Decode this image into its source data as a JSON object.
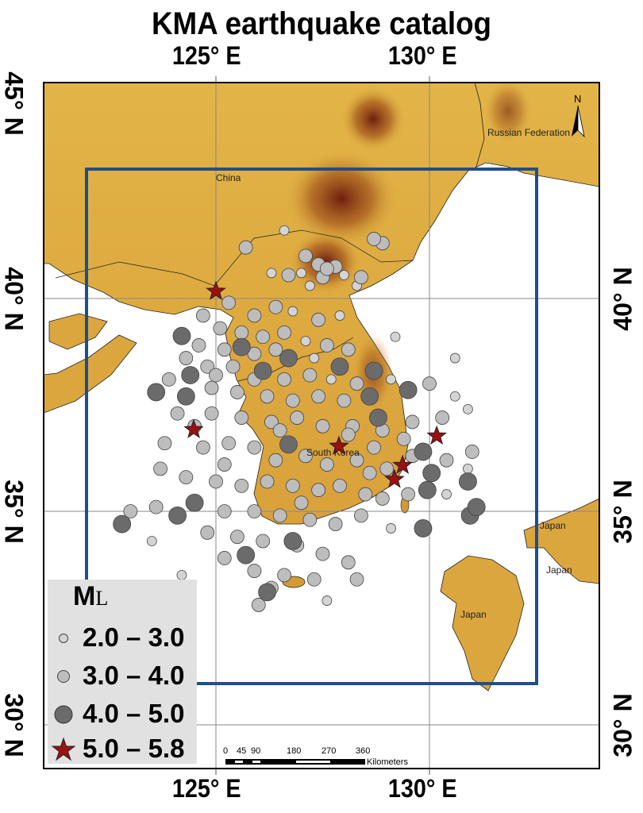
{
  "title": "KMA earthquake catalog",
  "axes": {
    "top_lon_labels": [
      "125° E",
      "130° E"
    ],
    "bottom_lon_labels": [
      "125° E",
      "130° E"
    ],
    "left_lat_labels": [
      "45° N",
      "40° N",
      "35° N",
      "30° N"
    ],
    "right_lat_labels": [
      "40° N",
      "35° N",
      "30° N"
    ],
    "lon_range": [
      121,
      134
    ],
    "lat_range": [
      29,
      45.2
    ]
  },
  "study_area_box": {
    "lon": [
      122.0,
      132.5
    ],
    "lat": [
      31.0,
      43.0
    ],
    "color": "#1f4e8c"
  },
  "place_labels": [
    "China",
    "Russian Federation",
    "South Korea",
    "Japan",
    "Japan",
    "Japan"
  ],
  "north_arrow": "N",
  "scale_bar": {
    "ticks": [
      "0",
      "45",
      "90",
      "180",
      "270",
      "360"
    ],
    "unit": "Kilometers"
  },
  "legend": {
    "title": "M",
    "title_sub": "L",
    "items": [
      {
        "label": "2.0 – 3.0",
        "symbol": "small-light-circle",
        "color": "#d4d4d4"
      },
      {
        "label": "3.0 – 4.0",
        "symbol": "medium-gray-circle",
        "color": "#bdbdbd"
      },
      {
        "label": "4.0 – 5.0",
        "symbol": "large-dark-circle",
        "color": "#6b6b6b"
      },
      {
        "label": "5.0 – 5.8",
        "symbol": "red-star",
        "color": "#9b1010"
      }
    ]
  },
  "earthquakes": [
    [
      125.0,
      40.17,
      5.2
    ],
    [
      124.48,
      36.92,
      5.1
    ],
    [
      127.88,
      36.53,
      5.0
    ],
    [
      130.17,
      36.77,
      5.0
    ],
    [
      129.37,
      36.08,
      5.4
    ],
    [
      129.18,
      35.75,
      5.8
    ],
    [
      124.2,
      39.12,
      4.3
    ],
    [
      124.4,
      38.2,
      4.2
    ],
    [
      123.6,
      37.8,
      4.1
    ],
    [
      124.3,
      37.7,
      4.4
    ],
    [
      122.8,
      34.7,
      4.0
    ],
    [
      124.1,
      34.9,
      4.2
    ],
    [
      124.5,
      35.2,
      4.1
    ],
    [
      125.7,
      33.97,
      4.5
    ],
    [
      126.2,
      33.1,
      4.3
    ],
    [
      126.7,
      36.57,
      4.0
    ],
    [
      128.6,
      37.7,
      4.1
    ],
    [
      128.7,
      38.3,
      4.0
    ],
    [
      129.5,
      37.85,
      4.6
    ],
    [
      128.8,
      37.2,
      4.2
    ],
    [
      129.85,
      36.4,
      4.3
    ],
    [
      130.05,
      35.9,
      4.1
    ],
    [
      129.95,
      35.5,
      4.0
    ],
    [
      129.85,
      34.6,
      4.2
    ],
    [
      130.9,
      35.7,
      4.0
    ],
    [
      131.1,
      35.1,
      4.4
    ],
    [
      130.95,
      34.9,
      4.0
    ],
    [
      125.6,
      38.86,
      4.1
    ],
    [
      126.1,
      38.3,
      4.0
    ],
    [
      126.7,
      38.6,
      4.2
    ],
    [
      127.9,
      38.4,
      4.0
    ],
    [
      126.8,
      34.3,
      4.1
    ],
    [
      126.6,
      41.6,
      2.6
    ],
    [
      127.1,
      41.0,
      3.4
    ],
    [
      127.4,
      40.8,
      3.6
    ],
    [
      127.6,
      40.7,
      3.8
    ],
    [
      127.8,
      40.75,
      3.2
    ],
    [
      127.5,
      40.5,
      3.5
    ],
    [
      128.0,
      40.55,
      2.8
    ],
    [
      128.4,
      40.5,
      3.1
    ],
    [
      127.0,
      40.6,
      2.9
    ],
    [
      126.7,
      40.55,
      3.3
    ],
    [
      126.3,
      40.6,
      2.4
    ],
    [
      128.7,
      41.4,
      3.6
    ],
    [
      128.9,
      41.3,
      3.2
    ],
    [
      125.7,
      41.2,
      3.0
    ],
    [
      128.3,
      40.3,
      2.5
    ],
    [
      127.2,
      40.3,
      2.7
    ],
    [
      126.4,
      39.8,
      3.2
    ],
    [
      125.3,
      39.9,
      3.5
    ],
    [
      125.9,
      39.6,
      3.4
    ],
    [
      126.8,
      39.7,
      2.6
    ],
    [
      127.4,
      39.5,
      3.1
    ],
    [
      124.7,
      39.6,
      3.3
    ],
    [
      125.1,
      39.3,
      3.7
    ],
    [
      125.6,
      39.2,
      3.6
    ],
    [
      126.1,
      39.1,
      3.2
    ],
    [
      126.6,
      39.2,
      3.5
    ],
    [
      127.1,
      39.0,
      2.8
    ],
    [
      127.6,
      38.9,
      3.0
    ],
    [
      124.6,
      38.9,
      3.4
    ],
    [
      125.2,
      38.8,
      3.8
    ],
    [
      125.9,
      38.7,
      3.5
    ],
    [
      126.4,
      38.8,
      3.3
    ],
    [
      127.3,
      38.6,
      2.9
    ],
    [
      128.1,
      38.8,
      3.2
    ],
    [
      124.3,
      38.6,
      3.4
    ],
    [
      124.8,
      38.4,
      3.6
    ],
    [
      125.4,
      38.4,
      3.7
    ],
    [
      125.9,
      38.1,
      3.3
    ],
    [
      126.6,
      38.1,
      3.5
    ],
    [
      127.2,
      38.2,
      3.2
    ],
    [
      127.7,
      38.1,
      2.9
    ],
    [
      128.3,
      38.0,
      3.1
    ],
    [
      123.9,
      38.1,
      3.5
    ],
    [
      124.9,
      37.9,
      3.4
    ],
    [
      125.5,
      37.8,
      3.6
    ],
    [
      126.2,
      37.7,
      3.8
    ],
    [
      126.8,
      37.6,
      3.2
    ],
    [
      127.4,
      37.7,
      3.4
    ],
    [
      128.0,
      37.6,
      3.0
    ],
    [
      124.1,
      37.3,
      3.3
    ],
    [
      124.9,
      37.3,
      3.6
    ],
    [
      125.6,
      37.2,
      3.5
    ],
    [
      126.3,
      37.1,
      3.2
    ],
    [
      126.9,
      37.2,
      3.4
    ],
    [
      127.5,
      37.0,
      3.7
    ],
    [
      128.2,
      37.0,
      3.3
    ],
    [
      128.9,
      36.9,
      3.1
    ],
    [
      129.6,
      37.1,
      3.5
    ],
    [
      130.3,
      37.2,
      3.0
    ],
    [
      130.6,
      37.7,
      2.6
    ],
    [
      130.0,
      38.0,
      3.2
    ],
    [
      129.1,
      38.1,
      2.8
    ],
    [
      130.9,
      37.4,
      2.5
    ],
    [
      123.8,
      36.6,
      3.6
    ],
    [
      124.7,
      36.5,
      3.4
    ],
    [
      125.3,
      36.6,
      3.3
    ],
    [
      125.9,
      36.5,
      3.7
    ],
    [
      126.4,
      36.2,
      3.5
    ],
    [
      127.1,
      36.3,
      3.2
    ],
    [
      127.6,
      36.1,
      3.6
    ],
    [
      128.3,
      36.2,
      3.4
    ],
    [
      128.7,
      36.5,
      3.3
    ],
    [
      129.0,
      36.0,
      3.8
    ],
    [
      129.6,
      36.3,
      3.5
    ],
    [
      130.4,
      36.2,
      3.2
    ],
    [
      130.9,
      36.0,
      2.7
    ],
    [
      123.7,
      36.0,
      3.4
    ],
    [
      124.3,
      35.8,
      3.2
    ],
    [
      125.0,
      35.7,
      3.5
    ],
    [
      125.6,
      35.6,
      3.6
    ],
    [
      126.2,
      35.7,
      3.4
    ],
    [
      126.8,
      35.6,
      3.2
    ],
    [
      127.4,
      35.5,
      3.7
    ],
    [
      127.9,
      35.6,
      3.3
    ],
    [
      128.5,
      35.4,
      3.5
    ],
    [
      128.9,
      35.3,
      3.1
    ],
    [
      129.5,
      35.4,
      3.4
    ],
    [
      130.4,
      35.4,
      2.9
    ],
    [
      123.0,
      35.0,
      3.1
    ],
    [
      123.6,
      35.1,
      3.3
    ],
    [
      125.2,
      35.0,
      3.4
    ],
    [
      125.9,
      35.0,
      3.6
    ],
    [
      126.5,
      34.9,
      3.3
    ],
    [
      127.2,
      34.8,
      3.5
    ],
    [
      127.8,
      34.7,
      3.2
    ],
    [
      128.4,
      34.9,
      3.4
    ],
    [
      129.1,
      34.6,
      2.8
    ],
    [
      123.5,
      34.3,
      2.6
    ],
    [
      124.8,
      34.5,
      3.2
    ],
    [
      125.5,
      34.4,
      3.5
    ],
    [
      126.1,
      34.3,
      3.3
    ],
    [
      126.9,
      34.2,
      3.1
    ],
    [
      127.5,
      34.0,
      3.4
    ],
    [
      128.1,
      33.8,
      3.3
    ],
    [
      125.2,
      33.9,
      3.1
    ],
    [
      125.9,
      33.6,
      3.4
    ],
    [
      126.6,
      33.5,
      3.2
    ],
    [
      127.3,
      33.4,
      3.5
    ],
    [
      128.3,
      33.4,
      3.1
    ],
    [
      126.0,
      32.8,
      3.4
    ],
    [
      127.6,
      32.9,
      2.6
    ],
    [
      126.3,
      33.2,
      3.6
    ],
    [
      124.2,
      33.5,
      2.7
    ],
    [
      131.0,
      36.4,
      3.0
    ],
    [
      130.6,
      38.6,
      2.6
    ],
    [
      129.2,
      39.1,
      2.5
    ],
    [
      127.9,
      39.6,
      2.6
    ],
    [
      128.1,
      36.8,
      3.6
    ],
    [
      126.5,
      36.9,
      3.8
    ],
    [
      125.2,
      36.1,
      3.7
    ],
    [
      124.5,
      37.0,
      3.5
    ],
    [
      129.4,
      36.7,
      3.6
    ],
    [
      128.6,
      35.9,
      3.7
    ],
    [
      127.0,
      35.2,
      3.6
    ],
    [
      125.0,
      38.2,
      3.8
    ]
  ]
}
